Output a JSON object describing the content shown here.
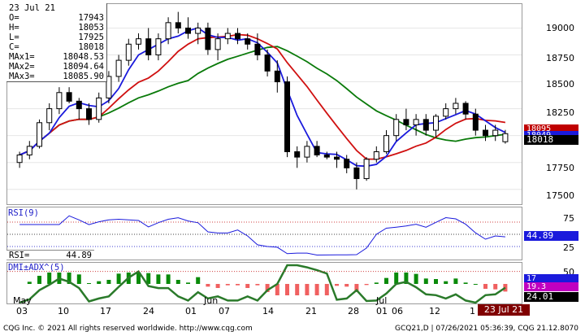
{
  "chart": {
    "ohlc": [
      {
        "label": "O=",
        "value": "17943"
      },
      {
        "label": "H=",
        "value": "18053"
      },
      {
        "label": "L=",
        "value": "17925"
      },
      {
        "label": "C=",
        "value": "18018"
      },
      {
        "label": "MAx1=",
        "value": "18048.53"
      },
      {
        "label": "MAx2=",
        "value": "18094.64"
      },
      {
        "label": "MAx3=",
        "value": "18085.90"
      }
    ],
    "date_header": "23 Jul 21",
    "price_ticks": [
      "19000",
      "18750",
      "18500",
      "18250",
      "18000",
      "17750",
      "17500"
    ],
    "price_tags": [
      {
        "text": "18095",
        "color": "#c00000"
      },
      {
        "text": "18049",
        "color": "#1a1adc"
      },
      {
        "text": "18018",
        "color": "#000000"
      }
    ],
    "rsi_label": "RSI(9)",
    "rsi_ticks": [
      "75",
      "25"
    ],
    "rsi_tag": "44.89",
    "rsi_value_label": "RSI=",
    "rsi_value": "44.89",
    "dmi_label": "DMI±ADX^(5)",
    "dmi_ticks": [
      "50"
    ],
    "dmi_tags": [
      {
        "text": "17",
        "color": "#1a1adc"
      },
      {
        "text": "19.3",
        "color": "#c000c0"
      },
      {
        "text": "24.01",
        "color": "#000000"
      }
    ],
    "months": [
      {
        "label": "May"
      },
      {
        "label": "Jun"
      },
      {
        "label": "Jul"
      }
    ],
    "dates": [
      "03",
      "10",
      "17",
      "24",
      "01",
      "07",
      "14",
      "21",
      "28",
      "01",
      "06",
      "12",
      "1"
    ],
    "cursor_date": "23 Jul 21"
  },
  "footer": {
    "left": "CQG Inc. © 2021 All rights reserved worldwide. http://www.cqg.com",
    "right": "GCQ21,D | 07/26/2021 05:36:39, CQG 21.12.8070"
  },
  "chart_data": {
    "type": "candlestick",
    "instrument": "GCQ21,D",
    "ylim": [
      17400,
      19200
    ],
    "candles": [
      [
        17750,
        17850,
        17700,
        17820
      ],
      [
        17820,
        17950,
        17780,
        17900
      ],
      [
        17900,
        18150,
        17880,
        18120
      ],
      [
        18120,
        18300,
        18050,
        18250
      ],
      [
        18250,
        18450,
        18200,
        18400
      ],
      [
        18400,
        18450,
        18300,
        18320
      ],
      [
        18320,
        18350,
        18150,
        18250
      ],
      [
        18250,
        18300,
        18100,
        18150
      ],
      [
        18150,
        18400,
        18120,
        18350
      ],
      [
        18350,
        18600,
        18300,
        18550
      ],
      [
        18550,
        18750,
        18500,
        18700
      ],
      [
        18700,
        18900,
        18650,
        18850
      ],
      [
        18850,
        18950,
        18800,
        18900
      ],
      [
        18900,
        19000,
        18700,
        18750
      ],
      [
        18750,
        18950,
        18700,
        18900
      ],
      [
        18900,
        19100,
        18850,
        19050
      ],
      [
        19050,
        19150,
        18950,
        19000
      ],
      [
        19000,
        19100,
        18900,
        18950
      ],
      [
        18950,
        19050,
        18850,
        19000
      ],
      [
        19000,
        19050,
        18750,
        18800
      ],
      [
        18800,
        18950,
        18700,
        18900
      ],
      [
        18900,
        19000,
        18850,
        18950
      ],
      [
        18950,
        19000,
        18850,
        18900
      ],
      [
        18900,
        18950,
        18800,
        18850
      ],
      [
        18850,
        18950,
        18700,
        18750
      ],
      [
        18750,
        18800,
        18550,
        18600
      ],
      [
        18600,
        18700,
        18400,
        18500
      ],
      [
        18500,
        18550,
        17800,
        17850
      ],
      [
        17850,
        17900,
        17700,
        17800
      ],
      [
        17800,
        17950,
        17750,
        17900
      ],
      [
        17900,
        17950,
        17800,
        17820
      ],
      [
        17820,
        17850,
        17780,
        17800
      ],
      [
        17800,
        17850,
        17700,
        17780
      ],
      [
        17780,
        17820,
        17650,
        17700
      ],
      [
        17700,
        17750,
        17500,
        17600
      ],
      [
        17600,
        17800,
        17580,
        17780
      ],
      [
        17780,
        17900,
        17750,
        17850
      ],
      [
        17850,
        18050,
        17830,
        18000
      ],
      [
        18000,
        18200,
        17950,
        18150
      ],
      [
        18150,
        18250,
        18050,
        18100
      ],
      [
        18100,
        18200,
        18000,
        18150
      ],
      [
        18150,
        18200,
        18000,
        18050
      ],
      [
        18050,
        18200,
        17980,
        18180
      ],
      [
        18180,
        18300,
        18150,
        18250
      ],
      [
        18250,
        18350,
        18200,
        18300
      ],
      [
        18300,
        18320,
        18150,
        18200
      ],
      [
        18200,
        18250,
        18000,
        18050
      ],
      [
        18050,
        18100,
        17950,
        18000
      ],
      [
        18000,
        18100,
        17950,
        18050
      ],
      [
        17943,
        18053,
        17925,
        18018
      ]
    ],
    "ma1": 18048.53,
    "ma2": 18094.64,
    "ma3": 18085.9,
    "rsi": 44.89,
    "adx": 24.01
  }
}
